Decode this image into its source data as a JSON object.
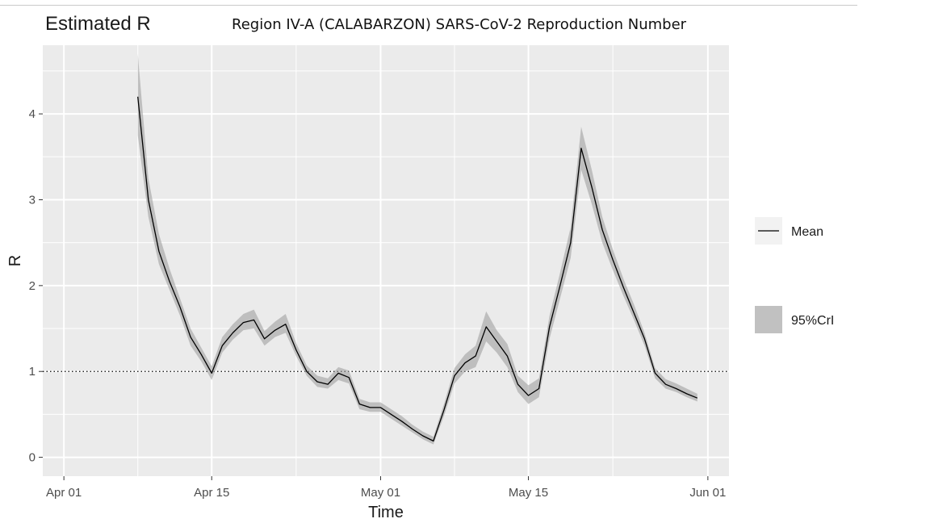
{
  "page": {
    "title": "Estimated R",
    "subtitle": "Region IV-A (CALABARZON) SARS-CoV-2 Reproduction Number"
  },
  "chart_data": {
    "type": "line",
    "title": "Estimated R",
    "subtitle": "Region IV-A (CALABARZON) SARS-CoV-2 Reproduction Number",
    "xlabel": "Time",
    "ylabel": "R",
    "x_ticks": [
      "Apr 01",
      "Apr 15",
      "May 01",
      "May 15",
      "Jun 01"
    ],
    "y_ticks": [
      0,
      1,
      2,
      3,
      4
    ],
    "xlim": [
      "2020-03-30",
      "2020-06-03"
    ],
    "ylim": [
      -0.22,
      4.8
    ],
    "reference_line": {
      "y": 1,
      "style": "dotted"
    },
    "grid": true,
    "legend": {
      "placement": "right",
      "entries": [
        {
          "label": "Mean",
          "kind": "line"
        },
        {
          "label": "95%CrI",
          "kind": "band"
        }
      ]
    },
    "colors": {
      "mean": "#000000",
      "band": "#999999",
      "panel": "#ebebeb",
      "grid": "#ffffff"
    },
    "series": [
      {
        "name": "Mean",
        "dates": [
          "2020-04-08",
          "2020-04-09",
          "2020-04-10",
          "2020-04-11",
          "2020-04-12",
          "2020-04-13",
          "2020-04-14",
          "2020-04-15",
          "2020-04-16",
          "2020-04-17",
          "2020-04-18",
          "2020-04-19",
          "2020-04-20",
          "2020-04-21",
          "2020-04-22",
          "2020-04-23",
          "2020-04-24",
          "2020-04-25",
          "2020-04-26",
          "2020-04-27",
          "2020-04-28",
          "2020-04-29",
          "2020-04-30",
          "2020-05-01",
          "2020-05-02",
          "2020-05-03",
          "2020-05-04",
          "2020-05-05",
          "2020-05-06",
          "2020-05-07",
          "2020-05-08",
          "2020-05-09",
          "2020-05-10",
          "2020-05-11",
          "2020-05-12",
          "2020-05-13",
          "2020-05-14",
          "2020-05-15",
          "2020-05-16",
          "2020-05-17",
          "2020-05-18",
          "2020-05-19",
          "2020-05-20",
          "2020-05-21",
          "2020-05-22",
          "2020-05-23",
          "2020-05-24",
          "2020-05-25",
          "2020-05-26",
          "2020-05-27",
          "2020-05-28",
          "2020-05-29",
          "2020-05-30",
          "2020-05-31"
        ],
        "values": [
          4.2,
          3.0,
          2.4,
          2.05,
          1.75,
          1.4,
          1.2,
          0.98,
          1.3,
          1.45,
          1.57,
          1.6,
          1.38,
          1.48,
          1.55,
          1.25,
          1.0,
          0.88,
          0.85,
          0.98,
          0.93,
          0.62,
          0.58,
          0.58,
          0.5,
          0.42,
          0.33,
          0.25,
          0.19,
          0.55,
          0.95,
          1.1,
          1.18,
          1.52,
          1.35,
          1.18,
          0.85,
          0.72,
          0.8,
          1.52,
          2.0,
          2.5,
          3.6,
          3.15,
          2.65,
          2.3,
          1.98,
          1.68,
          1.38,
          0.98,
          0.85,
          0.8,
          0.74,
          0.69
        ]
      }
    ],
    "band": {
      "name": "95%CrI",
      "lower": [
        3.75,
        2.8,
        2.25,
        1.95,
        1.65,
        1.3,
        1.12,
        0.9,
        1.22,
        1.37,
        1.48,
        1.5,
        1.3,
        1.4,
        1.45,
        1.18,
        0.95,
        0.82,
        0.8,
        0.9,
        0.86,
        0.56,
        0.53,
        0.53,
        0.45,
        0.37,
        0.29,
        0.21,
        0.15,
        0.48,
        0.86,
        1.0,
        1.05,
        1.35,
        1.22,
        1.05,
        0.76,
        0.62,
        0.7,
        1.38,
        1.85,
        2.32,
        3.35,
        2.95,
        2.5,
        2.18,
        1.88,
        1.6,
        1.3,
        0.92,
        0.8,
        0.76,
        0.7,
        0.65
      ],
      "upper": [
        4.7,
        3.25,
        2.6,
        2.2,
        1.85,
        1.5,
        1.28,
        1.06,
        1.4,
        1.55,
        1.67,
        1.72,
        1.47,
        1.58,
        1.67,
        1.33,
        1.07,
        0.95,
        0.92,
        1.05,
        1.01,
        0.68,
        0.64,
        0.64,
        0.56,
        0.48,
        0.38,
        0.3,
        0.24,
        0.62,
        1.04,
        1.2,
        1.3,
        1.7,
        1.48,
        1.32,
        0.95,
        0.84,
        0.92,
        1.65,
        2.15,
        2.68,
        3.85,
        3.35,
        2.8,
        2.42,
        2.08,
        1.78,
        1.45,
        1.04,
        0.91,
        0.86,
        0.8,
        0.74
      ]
    }
  }
}
